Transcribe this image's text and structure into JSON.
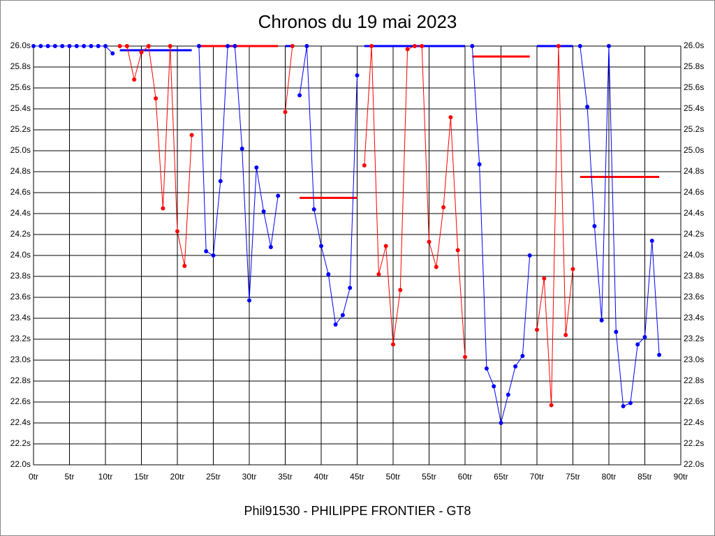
{
  "chart_data": {
    "type": "line",
    "title": "Chronos du 19 mai 2023",
    "xlabel": "Phil91530 - PHILIPPE FRONTIER - GT8",
    "xlim": [
      0,
      90
    ],
    "ylim": [
      22.0,
      26.0
    ],
    "grid": true,
    "xticks": [
      {
        "value": 0,
        "label": "0tr"
      },
      {
        "value": 5,
        "label": "5tr"
      },
      {
        "value": 10,
        "label": "10tr"
      },
      {
        "value": 15,
        "label": "15tr"
      },
      {
        "value": 20,
        "label": "20tr"
      },
      {
        "value": 25,
        "label": "25tr"
      },
      {
        "value": 30,
        "label": "30tr"
      },
      {
        "value": 35,
        "label": "35tr"
      },
      {
        "value": 40,
        "label": "40tr"
      },
      {
        "value": 45,
        "label": "45tr"
      },
      {
        "value": 50,
        "label": "50tr"
      },
      {
        "value": 55,
        "label": "55tr"
      },
      {
        "value": 60,
        "label": "60tr"
      },
      {
        "value": 65,
        "label": "65tr"
      },
      {
        "value": 70,
        "label": "70tr"
      },
      {
        "value": 75,
        "label": "75tr"
      },
      {
        "value": 80,
        "label": "80tr"
      },
      {
        "value": 85,
        "label": "85tr"
      },
      {
        "value": 90,
        "label": "90tr"
      }
    ],
    "yticks": [
      {
        "value": 22.0,
        "label": "22.0s"
      },
      {
        "value": 22.2,
        "label": "22.2s"
      },
      {
        "value": 22.4,
        "label": "22.4s"
      },
      {
        "value": 22.6,
        "label": "22.6s"
      },
      {
        "value": 22.8,
        "label": "22.8s"
      },
      {
        "value": 23.0,
        "label": "23.0s"
      },
      {
        "value": 23.2,
        "label": "23.2s"
      },
      {
        "value": 23.4,
        "label": "23.4s"
      },
      {
        "value": 23.6,
        "label": "23.6s"
      },
      {
        "value": 23.8,
        "label": "23.8s"
      },
      {
        "value": 24.0,
        "label": "24.0s"
      },
      {
        "value": 24.2,
        "label": "24.2s"
      },
      {
        "value": 24.4,
        "label": "24.4s"
      },
      {
        "value": 24.6,
        "label": "24.6s"
      },
      {
        "value": 24.8,
        "label": "24.8s"
      },
      {
        "value": 25.0,
        "label": "25.0s"
      },
      {
        "value": 25.2,
        "label": "25.2s"
      },
      {
        "value": 25.4,
        "label": "25.4s"
      },
      {
        "value": 25.6,
        "label": "25.6s"
      },
      {
        "value": 25.8,
        "label": "25.8s"
      },
      {
        "value": 26.0,
        "label": "26.0s"
      }
    ],
    "series": [
      {
        "color": "#0000ff",
        "x": [
          0,
          1,
          2,
          3,
          4,
          5,
          6,
          7,
          8,
          9,
          10,
          11
        ],
        "values": [
          26.0,
          26.0,
          26.0,
          26.0,
          26.0,
          26.0,
          26.0,
          26.0,
          26.0,
          26.0,
          26.0,
          25.93
        ]
      },
      {
        "color": "#ff0000",
        "x": [
          12,
          13,
          14,
          15,
          16,
          17,
          18,
          19,
          20,
          21,
          22
        ],
        "values": [
          26.0,
          26.0,
          25.68,
          25.94,
          26.0,
          25.5,
          24.45,
          26.0,
          24.23,
          23.9,
          25.15
        ]
      },
      {
        "color": "#0000ff",
        "x": [
          23,
          24,
          25,
          26,
          27,
          28,
          29,
          30,
          31,
          32,
          33,
          34
        ],
        "values": [
          26.0,
          24.04,
          24.0,
          24.71,
          26.0,
          26.0,
          25.02,
          23.57,
          24.84,
          24.42,
          24.08,
          24.57
        ]
      },
      {
        "color": "#ff0000",
        "x": [
          35,
          36
        ],
        "values": [
          25.37,
          26.0
        ]
      },
      {
        "color": "#0000ff",
        "x": [
          37,
          38,
          39,
          40,
          41,
          42,
          43,
          44,
          45
        ],
        "values": [
          25.53,
          26.0,
          24.44,
          24.09,
          23.82,
          23.34,
          23.43,
          23.69,
          25.72
        ]
      },
      {
        "color": "#ff0000",
        "x": [
          46,
          47,
          48,
          49,
          50,
          51,
          52,
          53,
          54,
          55,
          56,
          57,
          58,
          59,
          60
        ],
        "values": [
          24.86,
          26.0,
          23.82,
          24.09,
          23.15,
          23.67,
          25.97,
          26.0,
          26.0,
          24.13,
          23.89,
          24.46,
          25.32,
          24.05,
          23.03
        ]
      },
      {
        "color": "#0000ff",
        "x": [
          61,
          62,
          63,
          64,
          65,
          66,
          67,
          68,
          69
        ],
        "values": [
          26.0,
          24.87,
          22.92,
          22.75,
          22.4,
          22.67,
          22.94,
          23.04,
          24.0
        ]
      },
      {
        "color": "#ff0000",
        "x": [
          70,
          71,
          72,
          73,
          74,
          75
        ],
        "values": [
          23.29,
          23.78,
          22.57,
          26.0,
          23.24,
          23.87
        ]
      },
      {
        "color": "#0000ff",
        "x": [
          76,
          77,
          78,
          79,
          80,
          81,
          82,
          83,
          84,
          85,
          86,
          87
        ],
        "values": [
          26.0,
          25.42,
          24.28,
          23.38,
          26.0,
          23.27,
          22.56,
          22.59,
          23.15,
          23.22,
          24.14,
          23.05
        ]
      }
    ],
    "averages": [
      {
        "color": "#0000ff",
        "x": [
          12,
          22
        ],
        "values": [
          25.96,
          25.96
        ]
      },
      {
        "color": "#ff0000",
        "x": [
          23,
          34
        ],
        "values": [
          26.0,
          26.0
        ]
      },
      {
        "color": "#0000ff",
        "x": [
          35,
          36
        ],
        "values": [
          26.0,
          26.0
        ]
      },
      {
        "color": "#ff0000",
        "x": [
          37,
          45
        ],
        "values": [
          24.55,
          24.55
        ]
      },
      {
        "color": "#0000ff",
        "x": [
          46,
          60
        ],
        "values": [
          26.0,
          26.0
        ]
      },
      {
        "color": "#ff0000",
        "x": [
          61,
          69
        ],
        "values": [
          25.9,
          25.9
        ]
      },
      {
        "color": "#0000ff",
        "x": [
          70,
          75
        ],
        "values": [
          26.0,
          26.0
        ]
      },
      {
        "color": "#ff0000",
        "x": [
          76,
          87
        ],
        "values": [
          24.75,
          24.75
        ]
      }
    ]
  }
}
